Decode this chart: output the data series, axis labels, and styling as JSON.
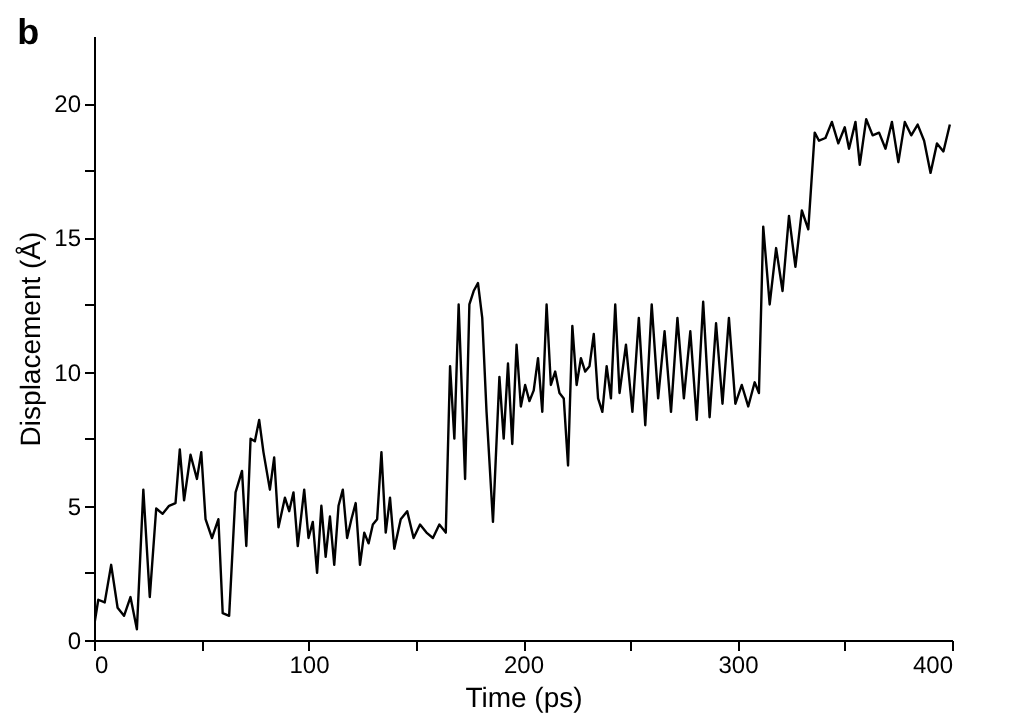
{
  "chart_data": {
    "type": "line",
    "title": "b",
    "xlabel": "Time (ps)",
    "ylabel": "Displacement (Å)",
    "x": [
      0,
      2,
      5,
      8,
      11,
      14,
      17,
      20,
      23,
      26,
      29,
      32,
      35,
      38,
      40,
      42,
      45,
      48,
      50,
      52,
      55,
      58,
      60,
      63,
      66,
      69,
      71,
      73,
      75,
      77,
      79,
      82,
      84,
      86,
      89,
      91,
      93,
      95,
      98,
      100,
      102,
      104,
      106,
      108,
      110,
      112,
      114,
      116,
      118,
      120,
      122,
      124,
      126,
      128,
      130,
      132,
      134,
      136,
      138,
      140,
      143,
      146,
      149,
      152,
      155,
      158,
      161,
      164,
      166,
      168,
      170,
      173,
      175,
      177,
      179,
      181,
      183,
      186,
      189,
      191,
      193,
      195,
      197,
      199,
      201,
      203,
      205,
      207,
      209,
      211,
      213,
      215,
      217,
      219,
      221,
      223,
      225,
      227,
      229,
      231,
      233,
      235,
      237,
      239,
      241,
      243,
      245,
      248,
      251,
      254,
      257,
      260,
      263,
      266,
      269,
      272,
      275,
      278,
      281,
      284,
      287,
      290,
      293,
      296,
      299,
      302,
      305,
      308,
      310,
      312,
      315,
      318,
      321,
      324,
      327,
      330,
      333,
      336,
      338,
      341,
      344,
      347,
      350,
      352,
      355,
      357,
      360,
      363,
      366,
      369,
      372,
      375,
      378,
      381,
      384,
      387,
      390,
      393,
      396,
      399
    ],
    "series": [
      {
        "color": "#000000",
        "values": [
          0.5,
          1.5,
          1.4,
          2.8,
          1.2,
          0.9,
          1.6,
          0.4,
          5.6,
          1.6,
          4.9,
          4.7,
          5.0,
          5.1,
          7.1,
          5.2,
          6.9,
          6.0,
          7.0,
          4.5,
          3.8,
          4.5,
          1.0,
          0.9,
          5.5,
          6.3,
          3.5,
          7.5,
          7.4,
          8.2,
          7.0,
          5.6,
          6.8,
          4.2,
          5.3,
          4.8,
          5.5,
          3.5,
          5.6,
          3.8,
          4.4,
          2.5,
          5.0,
          3.1,
          4.6,
          2.8,
          5.0,
          5.6,
          3.8,
          4.5,
          5.1,
          2.8,
          4.0,
          3.6,
          4.3,
          4.5,
          7.0,
          4.0,
          5.3,
          3.4,
          4.5,
          4.8,
          3.8,
          4.3,
          4.0,
          3.8,
          4.3,
          4.0,
          10.2,
          7.5,
          12.5,
          6.0,
          12.5,
          13.0,
          13.3,
          12.0,
          8.5,
          4.4,
          9.8,
          7.5,
          10.3,
          7.3,
          11.0,
          8.7,
          9.5,
          8.9,
          9.3,
          10.5,
          8.5,
          12.5,
          9.5,
          10.0,
          9.2,
          9.0,
          6.5,
          11.7,
          9.5,
          10.5,
          10.0,
          10.2,
          11.4,
          9.0,
          8.5,
          10.2,
          9.0,
          12.5,
          9.2,
          11.0,
          8.5,
          12.0,
          8.0,
          12.5,
          9.0,
          11.5,
          8.5,
          12.0,
          9.0,
          11.5,
          8.2,
          12.6,
          8.3,
          11.8,
          8.8,
          12.0,
          8.8,
          9.5,
          8.7,
          9.6,
          9.2,
          15.4,
          12.5,
          14.6,
          13.0,
          15.8,
          13.9,
          16.0,
          15.3,
          18.9,
          18.6,
          18.7,
          19.3,
          18.5,
          19.1,
          18.3,
          19.3,
          17.7,
          19.4,
          18.8,
          18.9,
          18.3,
          19.3,
          17.8,
          19.3,
          18.8,
          19.2,
          18.6,
          17.4,
          18.5,
          18.2,
          19.2
        ]
      }
    ],
    "xlim": [
      0,
      400
    ],
    "ylim": [
      0,
      22.5
    ],
    "xticks": [
      0,
      {
        "value": 50,
        "label": null
      },
      100,
      {
        "value": 150,
        "label": null
      },
      200,
      {
        "value": 250,
        "label": null
      },
      300,
      {
        "value": 350,
        "label": null
      },
      400
    ],
    "yticks": [
      0,
      {
        "value": 2.5,
        "label": null
      },
      5,
      {
        "value": 7.5,
        "label": null
      },
      10,
      {
        "value": 12.5,
        "label": null
      },
      15,
      {
        "value": 17.5,
        "label": null
      },
      20
    ],
    "grid": false,
    "marker": "none",
    "line_style": "solid"
  }
}
